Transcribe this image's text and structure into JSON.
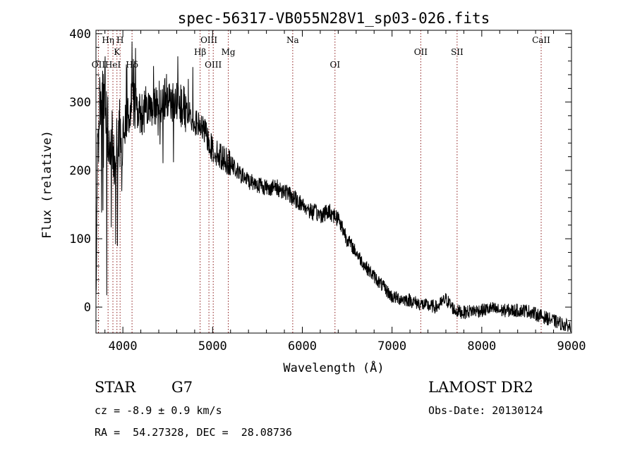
{
  "chart_data": {
    "type": "line",
    "title": "spec-56317-VB055N28V1_sp03-026.fits",
    "xlabel": "Wavelength (Å)",
    "ylabel": "Flux (relative)",
    "xlim": [
      3700,
      9000
    ],
    "ylim": [
      -38,
      405
    ],
    "x_ticks": [
      4000,
      5000,
      6000,
      7000,
      8000,
      9000
    ],
    "y_ticks": [
      0,
      100,
      200,
      300,
      400
    ],
    "grid": false,
    "line_color": "#000000",
    "marker_color": "#8b1a1a",
    "spectral_lines": [
      {
        "label": "OII",
        "x": 3727,
        "row": 3
      },
      {
        "label": "Hη",
        "x": 3835,
        "row": 1
      },
      {
        "label": "HeI",
        "x": 3889,
        "row": 3
      },
      {
        "label": "K",
        "x": 3934,
        "row": 2
      },
      {
        "label": "H",
        "x": 3969,
        "row": 1
      },
      {
        "label": "Hδ",
        "x": 4102,
        "row": 3
      },
      {
        "label": "Hβ",
        "x": 4861,
        "row": 2
      },
      {
        "label": "OIII",
        "x": 4959,
        "row": 1
      },
      {
        "label": "OIII",
        "x": 5007,
        "row": 3
      },
      {
        "label": "Mg",
        "x": 5175,
        "row": 2
      },
      {
        "label": "Na",
        "x": 5893,
        "row": 1
      },
      {
        "label": "OI",
        "x": 6364,
        "row": 3
      },
      {
        "label": "OII",
        "x": 7320,
        "row": 2
      },
      {
        "label": "SII",
        "x": 7725,
        "row": 2
      },
      {
        "label": "CaII",
        "x": 8662,
        "row": 1
      }
    ],
    "series": [
      {
        "anchors": [
          [
            3700,
            40
          ],
          [
            3715,
            200
          ],
          [
            3730,
            260
          ],
          [
            3750,
            320
          ],
          [
            3800,
            300
          ],
          [
            3850,
            240
          ],
          [
            3900,
            230
          ],
          [
            3950,
            250
          ],
          [
            4000,
            260
          ],
          [
            4050,
            270
          ],
          [
            4100,
            300
          ],
          [
            4200,
            280
          ],
          [
            4300,
            290
          ],
          [
            4400,
            300
          ],
          [
            4500,
            310
          ],
          [
            4600,
            300
          ],
          [
            4700,
            290
          ],
          [
            4800,
            270
          ],
          [
            4900,
            260
          ],
          [
            5000,
            230
          ],
          [
            5100,
            220
          ],
          [
            5200,
            210
          ],
          [
            5300,
            195
          ],
          [
            5400,
            185
          ],
          [
            5500,
            180
          ],
          [
            5600,
            175
          ],
          [
            5700,
            175
          ],
          [
            5800,
            170
          ],
          [
            5900,
            160
          ],
          [
            6000,
            150
          ],
          [
            6100,
            140
          ],
          [
            6200,
            135
          ],
          [
            6300,
            140
          ],
          [
            6400,
            130
          ],
          [
            6500,
            100
          ],
          [
            6600,
            80
          ],
          [
            6700,
            60
          ],
          [
            6800,
            45
          ],
          [
            6900,
            30
          ],
          [
            7000,
            15
          ],
          [
            7100,
            12
          ],
          [
            7200,
            10
          ],
          [
            7300,
            5
          ],
          [
            7400,
            2
          ],
          [
            7500,
            0
          ],
          [
            7600,
            12
          ],
          [
            7700,
            -5
          ],
          [
            7800,
            -8
          ],
          [
            7900,
            -5
          ],
          [
            8000,
            -5
          ],
          [
            8100,
            -2
          ],
          [
            8200,
            -5
          ],
          [
            8300,
            -5
          ],
          [
            8400,
            -5
          ],
          [
            8500,
            -5
          ],
          [
            8600,
            -10
          ],
          [
            8700,
            -15
          ],
          [
            8800,
            -20
          ],
          [
            8900,
            -25
          ],
          [
            9000,
            -30
          ]
        ]
      }
    ]
  },
  "footer": {
    "object_type": "STAR",
    "spectral_class": "G7",
    "survey": "LAMOST DR2",
    "cz": "cz = -8.9 ± 0.9 km/s",
    "obs_date": "Obs-Date: 20130124",
    "coords": "RA =  54.27328, DEC =  28.08736"
  }
}
